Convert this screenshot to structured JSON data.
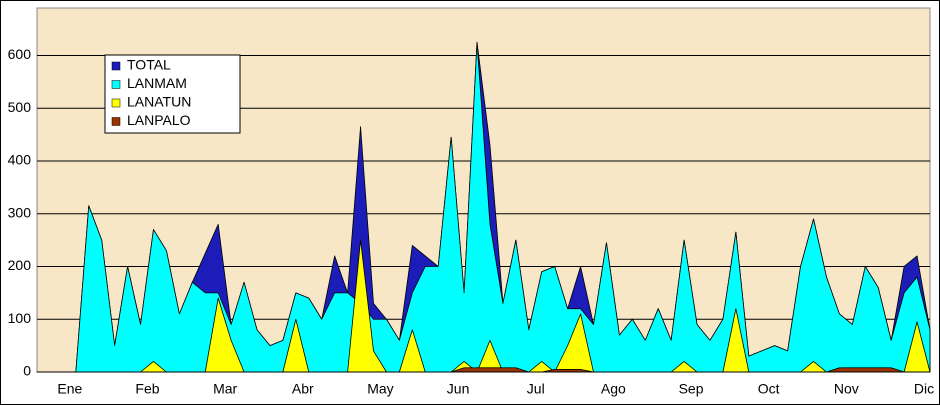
{
  "chart_data": {
    "type": "area",
    "categories": [
      null,
      null,
      null,
      "Ene",
      null,
      null,
      null,
      null,
      null,
      "Feb",
      null,
      null,
      null,
      null,
      null,
      "Mar",
      null,
      null,
      null,
      null,
      null,
      "Abr",
      null,
      null,
      null,
      null,
      null,
      "May",
      null,
      null,
      null,
      null,
      null,
      "Jun",
      null,
      null,
      null,
      null,
      null,
      "Jul",
      null,
      null,
      null,
      null,
      null,
      "Ago",
      null,
      null,
      null,
      null,
      null,
      "Sep",
      null,
      null,
      null,
      null,
      null,
      "Oct",
      null,
      null,
      null,
      null,
      null,
      "Nov",
      null,
      null,
      null,
      null,
      null,
      "Dic"
    ],
    "series": [
      {
        "name": "TOTAL",
        "color": "#1c1cb8",
        "values": [
          0,
          0,
          0,
          0,
          315,
          250,
          50,
          200,
          90,
          270,
          230,
          110,
          170,
          225,
          280,
          90,
          170,
          80,
          50,
          60,
          150,
          140,
          100,
          220,
          150,
          465,
          130,
          100,
          60,
          240,
          220,
          200,
          445,
          150,
          625,
          430,
          130,
          250,
          80,
          190,
          200,
          120,
          200,
          90,
          245,
          70,
          100,
          60,
          120,
          60,
          250,
          90,
          60,
          100,
          265,
          30,
          40,
          50,
          40,
          200,
          290,
          180,
          110,
          90,
          200,
          160,
          60,
          200,
          220,
          80
        ]
      },
      {
        "name": "LANMAM",
        "color": "#00ffff",
        "values": [
          0,
          0,
          0,
          0,
          315,
          250,
          50,
          200,
          90,
          270,
          230,
          110,
          170,
          150,
          150,
          90,
          170,
          80,
          50,
          60,
          150,
          140,
          100,
          150,
          150,
          130,
          100,
          100,
          60,
          150,
          200,
          200,
          445,
          150,
          625,
          280,
          130,
          250,
          80,
          190,
          200,
          120,
          120,
          90,
          245,
          70,
          100,
          60,
          120,
          60,
          250,
          90,
          60,
          100,
          265,
          30,
          40,
          50,
          40,
          200,
          290,
          180,
          110,
          90,
          200,
          160,
          60,
          150,
          180,
          80
        ]
      },
      {
        "name": "LANATUN",
        "color": "#ffff00",
        "values": [
          0,
          0,
          0,
          0,
          0,
          0,
          0,
          0,
          0,
          20,
          0,
          0,
          0,
          0,
          140,
          60,
          0,
          0,
          0,
          0,
          100,
          0,
          0,
          0,
          0,
          250,
          40,
          0,
          0,
          80,
          0,
          0,
          0,
          20,
          0,
          60,
          0,
          0,
          0,
          20,
          0,
          50,
          110,
          0,
          0,
          0,
          0,
          0,
          0,
          0,
          20,
          0,
          0,
          0,
          120,
          0,
          0,
          0,
          0,
          0,
          20,
          0,
          0,
          0,
          0,
          0,
          0,
          0,
          95,
          0
        ]
      },
      {
        "name": "LANPALO",
        "color": "#993300",
        "values": [
          0,
          0,
          0,
          0,
          0,
          0,
          0,
          0,
          0,
          0,
          0,
          0,
          0,
          0,
          0,
          0,
          0,
          0,
          0,
          0,
          0,
          0,
          0,
          0,
          0,
          0,
          0,
          0,
          0,
          0,
          0,
          0,
          0,
          8,
          8,
          8,
          8,
          8,
          0,
          0,
          5,
          5,
          5,
          0,
          0,
          0,
          0,
          0,
          0,
          0,
          0,
          0,
          0,
          0,
          0,
          0,
          0,
          0,
          0,
          0,
          0,
          0,
          8,
          8,
          8,
          8,
          8,
          0,
          0,
          0
        ]
      }
    ],
    "ylim": [
      0,
      690
    ],
    "yticks": [
      0,
      100,
      200,
      300,
      400,
      500,
      600
    ],
    "grid": true,
    "legend": "upper left"
  }
}
